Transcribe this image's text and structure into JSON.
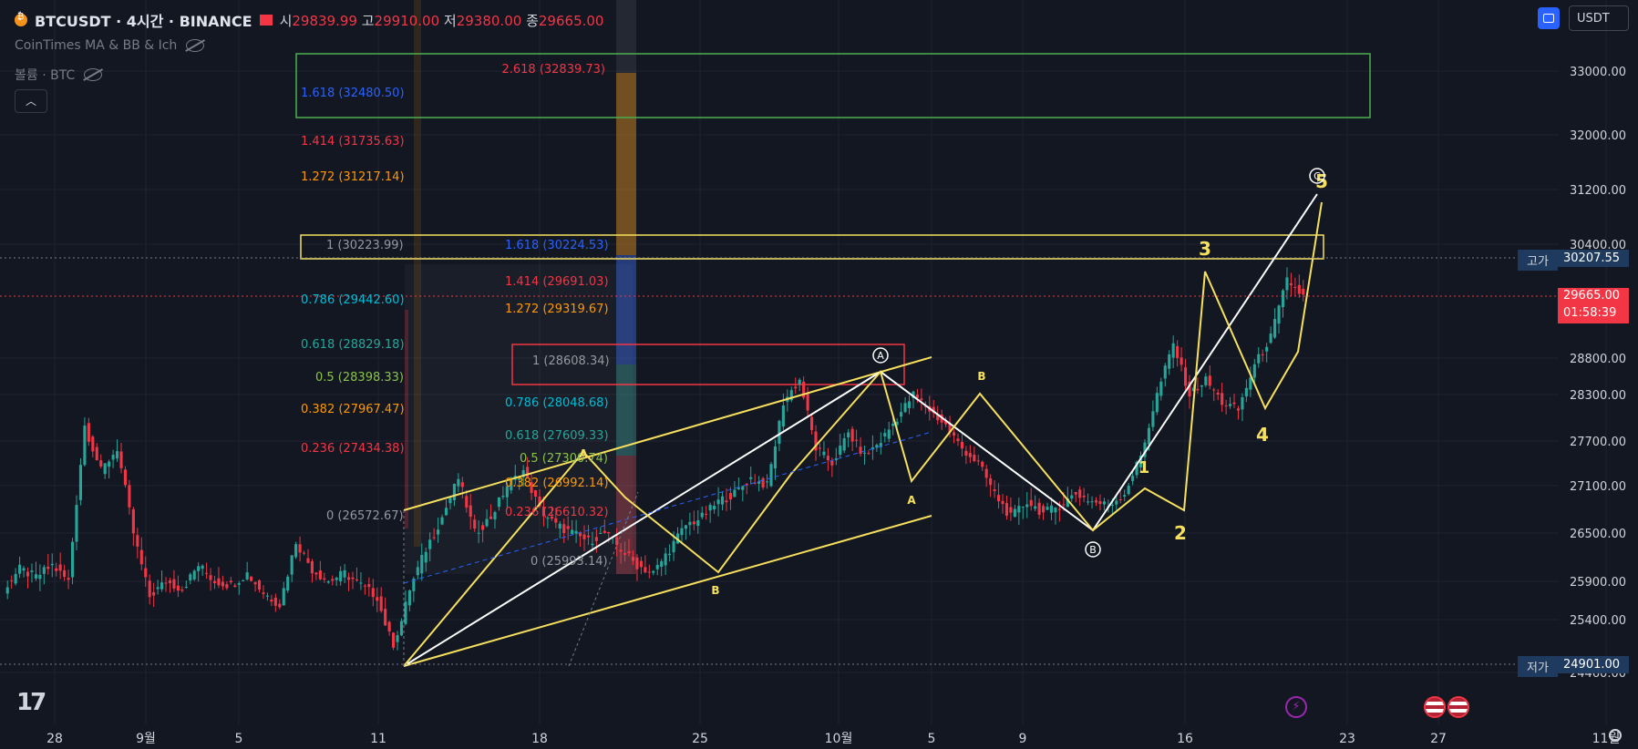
{
  "header": {
    "symbol": "BTCUSDT · 4시간 · BINANCE",
    "open_label": "시",
    "open": "29839.99",
    "high_label": "고",
    "high": "29910.00",
    "low_label": "저",
    "low": "29380.00",
    "close_label": "종",
    "close": "29665.00"
  },
  "indicators": [
    {
      "label": "CoinTimes MA & BB & Ich"
    },
    {
      "label": "볼륨 · BTC"
    }
  ],
  "currency": "USDT",
  "price_axis": {
    "ticks": [
      "33000.00",
      "32000.00",
      "31200.00",
      "30400.00",
      "28800.00",
      "28300.00",
      "27700.00",
      "27100.00",
      "26500.00",
      "25900.00",
      "25400.00",
      "24460.00"
    ],
    "high_tag_label": "고가",
    "high_tag_value": "30207.55",
    "low_tag_label": "저가",
    "low_tag_value": "24901.00",
    "last_price": "29665.00",
    "countdown": "01:58:39"
  },
  "time_axis": [
    "28",
    "9월",
    "5",
    "11",
    "18",
    "25",
    "10월",
    "5",
    "9",
    "16",
    "23",
    "27",
    "11월"
  ],
  "fib_labels": [
    {
      "text": "2.618 (32839.73)",
      "color": "#f23645"
    },
    {
      "text": "1.618 (32480.50)",
      "color": "#2962ff"
    },
    {
      "text": "1.414 (31735.63)",
      "color": "#f23645"
    },
    {
      "text": "1.272 (31217.14)",
      "color": "#ff9800"
    },
    {
      "text": "1 (30223.99)",
      "color": "#9598a1"
    },
    {
      "text": "1.618 (30224.53)",
      "color": "#2962ff"
    },
    {
      "text": "1.414 (29691.03)",
      "color": "#f23645"
    },
    {
      "text": "0.786 (29442.60)",
      "color": "#00bcd4"
    },
    {
      "text": "1.272 (29319.67)",
      "color": "#ff9800"
    },
    {
      "text": "0.618 (28829.18)",
      "color": "#26a69a"
    },
    {
      "text": "1 (28608.34)",
      "color": "#9598a1"
    },
    {
      "text": "0.5 (28398.33)",
      "color": "#8bc34a"
    },
    {
      "text": "0.382 (27967.47)",
      "color": "#ff9800"
    },
    {
      "text": "0.786 (28048.68)",
      "color": "#00bcd4"
    },
    {
      "text": "0.618 (27609.33)",
      "color": "#26a69a"
    },
    {
      "text": "0.236 (27434.38)",
      "color": "#f23645"
    },
    {
      "text": "0.5 (27300.74)",
      "color": "#8bc34a"
    },
    {
      "text": "0.382 (26992.14)",
      "color": "#ff9800"
    },
    {
      "text": "0 (26572.67)",
      "color": "#9598a1"
    },
    {
      "text": "0.236 (26610.32)",
      "color": "#f23645"
    },
    {
      "text": "0 (25993.14)",
      "color": "#9598a1"
    }
  ],
  "wave_labels": [
    {
      "text": "A",
      "color": "#f6e05e"
    },
    {
      "text": "B",
      "color": "#f6e05e"
    },
    {
      "text": "A",
      "color": "#f6e05e"
    },
    {
      "text": "B",
      "color": "#f6e05e"
    },
    {
      "text": "1",
      "color": "#f6e05e"
    },
    {
      "text": "2",
      "color": "#f6e05e"
    },
    {
      "text": "3",
      "color": "#f6e05e"
    },
    {
      "text": "4",
      "color": "#f6e05e"
    },
    {
      "text": "5",
      "color": "#f6e05e"
    }
  ],
  "circle_labels": [
    {
      "text": "A"
    },
    {
      "text": "B"
    },
    {
      "text": "C"
    }
  ],
  "colors": {
    "up": "#26a69a",
    "down": "#f23645",
    "bg": "#131722",
    "yellow": "#f6e05e",
    "white": "#ffffff"
  },
  "chart_data": {
    "type": "candlestick",
    "x_range": [
      "28",
      "11월"
    ],
    "y_range": [
      24460,
      33400
    ],
    "ohlc_path": [
      [
        25800,
        26050
      ],
      [
        26050,
        25950
      ],
      [
        25950,
        26100
      ],
      [
        26100,
        25900
      ],
      [
        25900,
        27900
      ],
      [
        27900,
        27300
      ],
      [
        27300,
        27600
      ],
      [
        27600,
        26500
      ],
      [
        26500,
        25700
      ],
      [
        25700,
        25900
      ],
      [
        25900,
        25800
      ],
      [
        25800,
        26100
      ],
      [
        26100,
        25900
      ],
      [
        25900,
        25850
      ],
      [
        25850,
        26000
      ],
      [
        26000,
        25750
      ],
      [
        25750,
        25600
      ],
      [
        25600,
        26400
      ],
      [
        26400,
        26050
      ],
      [
        26050,
        25900
      ],
      [
        25900,
        26000
      ],
      [
        26000,
        25850
      ],
      [
        25850,
        25700
      ],
      [
        25700,
        24950
      ],
      [
        24950,
        25800
      ],
      [
        25800,
        26300
      ],
      [
        26300,
        26700
      ],
      [
        26700,
        27200
      ],
      [
        27200,
        26500
      ],
      [
        26500,
        26700
      ],
      [
        26700,
        27100
      ],
      [
        27100,
        27300
      ],
      [
        27300,
        26800
      ],
      [
        26800,
        26600
      ],
      [
        26600,
        26500
      ],
      [
        26500,
        26400
      ],
      [
        26400,
        26500
      ],
      [
        26500,
        26300
      ],
      [
        26300,
        26100
      ],
      [
        26100,
        26000
      ],
      [
        26000,
        26300
      ],
      [
        26300,
        26600
      ],
      [
        26600,
        26700
      ],
      [
        26700,
        26900
      ],
      [
        26900,
        27000
      ],
      [
        27000,
        27200
      ],
      [
        27200,
        27100
      ],
      [
        27100,
        28200
      ],
      [
        28200,
        28500
      ],
      [
        28500,
        27600
      ],
      [
        27600,
        27400
      ],
      [
        27400,
        27800
      ],
      [
        27800,
        27500
      ],
      [
        27500,
        27700
      ],
      [
        27700,
        28000
      ],
      [
        28000,
        28300
      ],
      [
        28300,
        28100
      ],
      [
        28100,
        27900
      ],
      [
        27900,
        27600
      ],
      [
        27600,
        27400
      ],
      [
        27400,
        27000
      ],
      [
        27000,
        26700
      ],
      [
        26700,
        26900
      ],
      [
        26900,
        26750
      ],
      [
        26750,
        26850
      ],
      [
        26850,
        27000
      ],
      [
        27000,
        26900
      ],
      [
        26900,
        26850
      ],
      [
        26850,
        27000
      ],
      [
        27000,
        27500
      ],
      [
        27500,
        28300
      ],
      [
        28300,
        29000
      ],
      [
        29000,
        28300
      ],
      [
        28300,
        28500
      ],
      [
        28500,
        28200
      ],
      [
        28200,
        28100
      ],
      [
        28100,
        28700
      ],
      [
        28700,
        29100
      ],
      [
        29100,
        29900
      ],
      [
        29900,
        29665
      ]
    ]
  }
}
